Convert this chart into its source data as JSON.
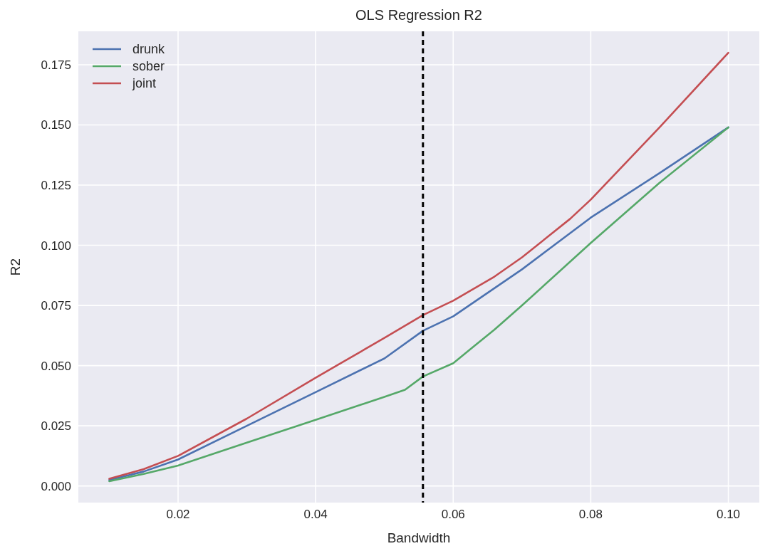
{
  "chart_data": {
    "type": "line",
    "title": "OLS Regression R2",
    "xlabel": "Bandwidth",
    "ylabel": "R2",
    "xlim": [
      0.0055,
      0.1045
    ],
    "xticks": [
      {
        "value": 0.02,
        "label": "0.02"
      },
      {
        "value": 0.04,
        "label": "0.04"
      },
      {
        "value": 0.06,
        "label": "0.06"
      },
      {
        "value": 0.08,
        "label": "0.08"
      },
      {
        "value": 0.1,
        "label": "0.10"
      }
    ],
    "ylim": [
      -0.0069,
      0.1889
    ],
    "yticks": [
      {
        "value": 0,
        "label": "0.000"
      },
      {
        "value": 0.025,
        "label": "0.025"
      },
      {
        "value": 0.05,
        "label": "0.050"
      },
      {
        "value": 0.075,
        "label": "0.075"
      },
      {
        "value": 0.1,
        "label": "0.100"
      },
      {
        "value": 0.125,
        "label": "0.125"
      },
      {
        "value": 0.15,
        "label": "0.150"
      },
      {
        "value": 0.175,
        "label": "0.175"
      }
    ],
    "grid": true,
    "legend": "top left",
    "marker": "none",
    "line_style": "solid",
    "series": [
      {
        "name": "drunk",
        "color": "#4c72b0",
        "x": [
          0.01,
          0.015,
          0.02,
          0.03,
          0.04,
          0.05,
          0.0556,
          0.06,
          0.07,
          0.08,
          0.09,
          0.1
        ],
        "values": [
          0.0025,
          0.006,
          0.011,
          0.025,
          0.039,
          0.053,
          0.0645,
          0.0705,
          0.09,
          0.1115,
          0.13,
          0.149
        ]
      },
      {
        "name": "sober",
        "color": "#55a868",
        "x": [
          0.01,
          0.015,
          0.02,
          0.03,
          0.04,
          0.05,
          0.053,
          0.0556,
          0.06,
          0.063,
          0.066,
          0.07,
          0.08,
          0.09,
          0.1
        ],
        "values": [
          0.002,
          0.005,
          0.0085,
          0.018,
          0.0275,
          0.037,
          0.04,
          0.0455,
          0.051,
          0.058,
          0.065,
          0.075,
          0.101,
          0.126,
          0.149
        ]
      },
      {
        "name": "joint",
        "color": "#c44e52",
        "x": [
          0.01,
          0.015,
          0.02,
          0.03,
          0.04,
          0.05,
          0.0556,
          0.06,
          0.066,
          0.07,
          0.077,
          0.08,
          0.09,
          0.1
        ],
        "values": [
          0.003,
          0.007,
          0.0125,
          0.028,
          0.045,
          0.0615,
          0.071,
          0.077,
          0.087,
          0.095,
          0.111,
          0.119,
          0.149,
          0.18
        ]
      }
    ],
    "ref_lines": [
      {
        "axis": "x",
        "value": 0.0556,
        "color": "#000000",
        "line_style": "dashed"
      }
    ]
  }
}
